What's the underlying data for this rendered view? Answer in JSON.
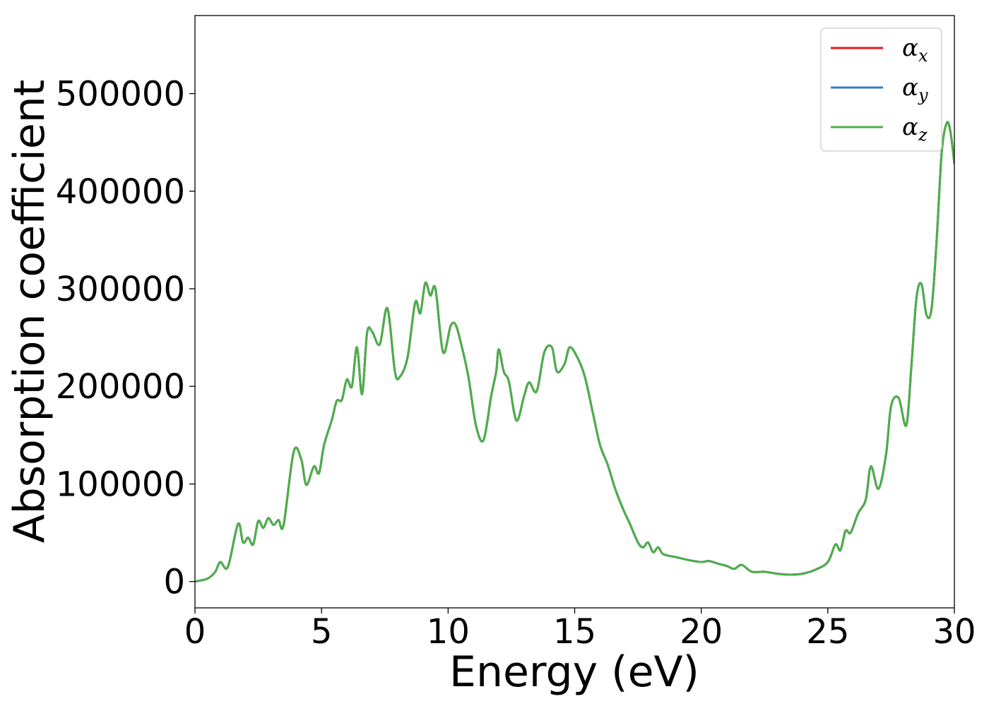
{
  "chart_data": {
    "type": "line",
    "title": "",
    "xlabel": "Energy (eV)",
    "ylabel": "Absorption coefficient",
    "xlim": [
      0,
      30
    ],
    "ylim": [
      -27000,
      580000
    ],
    "xticks": [
      0,
      5,
      10,
      15,
      20,
      25,
      30
    ],
    "xtick_labels": [
      "0",
      "5",
      "10",
      "15",
      "20",
      "25",
      "30"
    ],
    "yticks": [
      0,
      100000,
      200000,
      300000,
      400000,
      500000
    ],
    "ytick_labels": [
      "0",
      "100000",
      "200000",
      "300000",
      "400000",
      "500000"
    ],
    "grid": false,
    "legend_position": "top-right",
    "x": [
      0,
      0.5,
      0.8,
      1.0,
      1.3,
      1.7,
      1.9,
      2.1,
      2.3,
      2.5,
      2.7,
      2.9,
      3.1,
      3.3,
      3.5,
      3.9,
      4.2,
      4.4,
      4.7,
      4.9,
      5.1,
      5.4,
      5.6,
      5.8,
      6.0,
      6.2,
      6.4,
      6.6,
      6.8,
      7.0,
      7.3,
      7.6,
      7.9,
      8.1,
      8.4,
      8.7,
      8.9,
      9.1,
      9.3,
      9.5,
      9.8,
      10.1,
      10.3,
      10.5,
      10.8,
      11.1,
      11.4,
      11.7,
      11.9,
      12.0,
      12.2,
      12.4,
      12.7,
      13.0,
      13.2,
      13.5,
      13.8,
      14.1,
      14.3,
      14.6,
      14.8,
      15.1,
      15.4,
      15.7,
      16.0,
      16.3,
      16.6,
      16.9,
      17.2,
      17.5,
      17.7,
      17.9,
      18.1,
      18.3,
      18.5,
      19.0,
      19.5,
      20.0,
      20.3,
      20.7,
      21.0,
      21.3,
      21.6,
      22.0,
      22.5,
      23.0,
      23.5,
      24.0,
      24.5,
      25.0,
      25.3,
      25.5,
      25.7,
      25.9,
      26.2,
      26.5,
      26.7,
      27.0,
      27.3,
      27.5,
      27.8,
      28.1,
      28.3,
      28.5,
      28.7,
      28.9,
      29.1,
      29.3,
      29.5,
      29.7,
      29.85,
      30.0
    ],
    "series": [
      {
        "name": "αx",
        "color": "#e41a1c",
        "values": [
          0,
          3000,
          10000,
          20000,
          15000,
          59000,
          40000,
          45000,
          38000,
          62000,
          55000,
          65000,
          58000,
          63000,
          58000,
          133000,
          125000,
          99000,
          118000,
          111000,
          140000,
          165000,
          185000,
          186000,
          207000,
          200000,
          240000,
          192000,
          255000,
          256000,
          243000,
          280000,
          215000,
          210000,
          230000,
          286000,
          275000,
          306000,
          293000,
          300000,
          235000,
          262000,
          263000,
          245000,
          210000,
          160000,
          145000,
          190000,
          215000,
          238000,
          215000,
          205000,
          165000,
          190000,
          204000,
          195000,
          235000,
          240000,
          215000,
          223000,
          240000,
          230000,
          210000,
          175000,
          140000,
          120000,
          95000,
          75000,
          58000,
          40000,
          35000,
          40000,
          30000,
          35000,
          28000,
          25000,
          22000,
          20000,
          21000,
          18000,
          16000,
          13000,
          17000,
          10000,
          10000,
          8000,
          7000,
          8000,
          12000,
          20000,
          38000,
          32000,
          52000,
          50000,
          70000,
          84000,
          118000,
          95000,
          130000,
          180000,
          188000,
          160000,
          220000,
          290000,
          305000,
          273000,
          280000,
          350000,
          440000,
          470000,
          460000,
          428000
        ]
      },
      {
        "name": "αy",
        "color": "#377eb8",
        "values": [
          0,
          3000,
          10000,
          20000,
          15000,
          59000,
          40000,
          45000,
          38000,
          62000,
          55000,
          65000,
          58000,
          63000,
          58000,
          133000,
          125000,
          99000,
          118000,
          111000,
          140000,
          165000,
          185000,
          186000,
          207000,
          200000,
          240000,
          192000,
          255000,
          256000,
          243000,
          280000,
          215000,
          210000,
          230000,
          286000,
          275000,
          306000,
          293000,
          300000,
          235000,
          262000,
          263000,
          245000,
          210000,
          160000,
          145000,
          190000,
          215000,
          238000,
          215000,
          205000,
          165000,
          190000,
          204000,
          195000,
          235000,
          240000,
          215000,
          223000,
          240000,
          230000,
          210000,
          175000,
          140000,
          120000,
          95000,
          75000,
          58000,
          40000,
          35000,
          40000,
          30000,
          35000,
          28000,
          25000,
          22000,
          20000,
          21000,
          18000,
          16000,
          13000,
          17000,
          10000,
          10000,
          8000,
          7000,
          8000,
          12000,
          20000,
          38000,
          32000,
          52000,
          50000,
          70000,
          84000,
          118000,
          95000,
          130000,
          180000,
          188000,
          160000,
          220000,
          290000,
          305000,
          273000,
          280000,
          350000,
          440000,
          470000,
          460000,
          428000
        ]
      },
      {
        "name": "αz",
        "color": "#4daf4a",
        "values": [
          0,
          3000,
          10000,
          20000,
          15000,
          59000,
          40000,
          45000,
          38000,
          62000,
          55000,
          65000,
          58000,
          63000,
          58000,
          133000,
          125000,
          99000,
          118000,
          111000,
          140000,
          165000,
          185000,
          186000,
          207000,
          200000,
          240000,
          192000,
          255000,
          256000,
          243000,
          280000,
          215000,
          210000,
          230000,
          286000,
          275000,
          306000,
          293000,
          300000,
          235000,
          262000,
          263000,
          245000,
          210000,
          160000,
          145000,
          190000,
          215000,
          238000,
          215000,
          205000,
          165000,
          190000,
          204000,
          195000,
          235000,
          240000,
          215000,
          223000,
          240000,
          230000,
          210000,
          175000,
          140000,
          120000,
          95000,
          75000,
          58000,
          40000,
          35000,
          40000,
          30000,
          35000,
          28000,
          25000,
          22000,
          20000,
          21000,
          18000,
          16000,
          13000,
          17000,
          10000,
          10000,
          8000,
          7000,
          8000,
          12000,
          20000,
          38000,
          32000,
          52000,
          50000,
          70000,
          84000,
          118000,
          95000,
          130000,
          180000,
          188000,
          160000,
          220000,
          290000,
          305000,
          273000,
          280000,
          350000,
          440000,
          470000,
          460000,
          428000
        ]
      }
    ],
    "legend": [
      {
        "symbol": "α",
        "sub": "x",
        "color": "#e41a1c"
      },
      {
        "symbol": "α",
        "sub": "y",
        "color": "#377eb8"
      },
      {
        "symbol": "α",
        "sub": "z",
        "color": "#4daf4a"
      }
    ]
  }
}
